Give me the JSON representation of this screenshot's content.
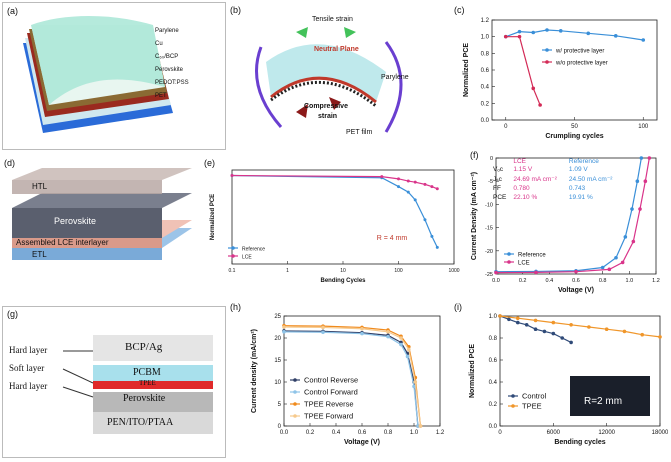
{
  "panels": {
    "a": {
      "label": "(a)",
      "layers": [
        "Parylene",
        "Cu",
        "C₆₀/BCP",
        "Perovskite",
        "PEDOT:PSS",
        "PET"
      ]
    },
    "b": {
      "label": "(b)",
      "tensile": "Tensile strain",
      "neutral": "Neutral Plane",
      "parylene": "Parylene",
      "compressive": "Compressive",
      "compressive2": "strain",
      "pet": "PET film"
    },
    "d": {
      "label": "(d)",
      "layers": [
        "HTL",
        "Perovskite",
        "Assembled LCE interlayer",
        "ETL"
      ]
    },
    "f": {
      "label": "(f)",
      "table": {
        "head": [
          "",
          "LCE",
          "Reference"
        ],
        "rows": [
          [
            "Vₒc",
            "1.15 V",
            "1.09 V"
          ],
          [
            "Jₛc",
            "24.69 mA cm⁻²",
            "24.50 mA cm⁻²"
          ],
          [
            "FF",
            "0.780",
            "0.743"
          ],
          [
            "PCE",
            "22.10 %",
            "19.91 %"
          ]
        ]
      }
    },
    "g": {
      "label": "(g)",
      "side": [
        "Hard layer",
        "Soft layer",
        "Hard layer"
      ],
      "stack": [
        "BCP/Ag",
        "PCBM",
        "TPEE",
        "Perovskite",
        "PEN/ITO/PTAA"
      ]
    },
    "i": {
      "inset": "R=2 mm"
    }
  },
  "chart_data": [
    {
      "id": "c",
      "label": "(c)",
      "type": "line",
      "xlabel": "Crumpling cycles",
      "ylabel": "Normalized PCE",
      "xlim": [
        -10,
        110
      ],
      "ylim": [
        0.0,
        1.2
      ],
      "xticks": [
        "0",
        "50",
        "100"
      ],
      "yticks": [
        "0.0",
        "0.2",
        "0.4",
        "0.6",
        "0.8",
        "1.0",
        "1.2"
      ],
      "legend_position": "center-right",
      "series": [
        {
          "name": "w/ protective layer",
          "color": "#3a8fd8",
          "x": [
            0,
            10,
            20,
            30,
            40,
            60,
            80,
            100
          ],
          "y": [
            1.0,
            1.06,
            1.05,
            1.08,
            1.07,
            1.04,
            1.01,
            0.96
          ]
        },
        {
          "name": "w/o protective layer",
          "color": "#d32a56",
          "x": [
            0,
            10,
            20,
            25
          ],
          "y": [
            1.0,
            1.0,
            0.38,
            0.18
          ]
        }
      ]
    },
    {
      "id": "e",
      "label": "(e)",
      "type": "line",
      "xlabel": "Bending Cycles",
      "ylabel": "Normalized PCE",
      "xscale": "log",
      "xlim": [
        0.1,
        1000
      ],
      "ylim": [
        0.2,
        1.05
      ],
      "xticks": [
        "0.1",
        "1",
        "10",
        "100",
        "1000"
      ],
      "inset": "R = 4 mm",
      "legend_position": "bottom-left",
      "series": [
        {
          "name": "Reference",
          "color": "#3a8fd8",
          "x": [
            0.1,
            50,
            100,
            150,
            200,
            300,
            400,
            500
          ],
          "y": [
            1.0,
            0.98,
            0.9,
            0.85,
            0.78,
            0.6,
            0.45,
            0.35
          ]
        },
        {
          "name": "LCE",
          "color": "#d9348a",
          "x": [
            0.1,
            50,
            100,
            150,
            200,
            300,
            400,
            500
          ],
          "y": [
            1.0,
            0.99,
            0.97,
            0.95,
            0.94,
            0.92,
            0.9,
            0.88
          ]
        }
      ]
    },
    {
      "id": "f",
      "label": "(f)",
      "type": "line",
      "xlabel": "Voltage (V)",
      "ylabel": "Current Density (mA cm⁻²)",
      "xlim": [
        0.0,
        1.2
      ],
      "ylim": [
        -25,
        0
      ],
      "xticks": [
        "0.0",
        "0.2",
        "0.4",
        "0.6",
        "0.8",
        "1.0",
        "1.2"
      ],
      "yticks": [
        "0",
        "-5",
        "-10",
        "-15",
        "-20",
        "-25"
      ],
      "legend_position": "bottom-left",
      "series": [
        {
          "name": "Reference",
          "color": "#3a8fd8",
          "x": [
            0.0,
            0.3,
            0.6,
            0.8,
            0.9,
            0.97,
            1.02,
            1.06,
            1.09
          ],
          "y": [
            -24.5,
            -24.45,
            -24.3,
            -23.6,
            -21.5,
            -17.0,
            -11.0,
            -5.0,
            0.0
          ]
        },
        {
          "name": "LCE",
          "color": "#d9348a",
          "x": [
            0.0,
            0.3,
            0.6,
            0.85,
            0.95,
            1.03,
            1.08,
            1.12,
            1.15
          ],
          "y": [
            -24.7,
            -24.65,
            -24.5,
            -24.0,
            -22.5,
            -18.0,
            -11.0,
            -5.0,
            0.0
          ]
        }
      ]
    },
    {
      "id": "h",
      "label": "(h)",
      "type": "line",
      "xlabel": "Voltage (V)",
      "ylabel": "Current density (mA/cm²)",
      "xlim": [
        0.0,
        1.2
      ],
      "ylim": [
        0,
        25
      ],
      "xticks": [
        "0.0",
        "0.2",
        "0.4",
        "0.6",
        "0.8",
        "1.0",
        "1.2"
      ],
      "yticks": [
        "0",
        "5",
        "10",
        "15",
        "20",
        "25"
      ],
      "legend_position": "bottom-left",
      "series": [
        {
          "name": "Control Reverse",
          "color": "#2f3e66",
          "x": [
            0.0,
            0.3,
            0.6,
            0.8,
            0.9,
            0.95,
            1.0,
            1.03
          ],
          "y": [
            21.6,
            21.5,
            21.2,
            20.6,
            19.0,
            16.5,
            10.0,
            0.0
          ]
        },
        {
          "name": "Control Forward",
          "color": "#8fc4e8",
          "x": [
            0.0,
            0.3,
            0.6,
            0.8,
            0.9,
            0.95,
            1.0,
            1.03
          ],
          "y": [
            21.4,
            21.3,
            21.0,
            20.3,
            18.5,
            15.8,
            9.0,
            0.0
          ]
        },
        {
          "name": "TPEE Reverse",
          "color": "#f08a1c",
          "x": [
            0.0,
            0.3,
            0.6,
            0.8,
            0.9,
            0.96,
            1.01,
            1.05
          ],
          "y": [
            22.8,
            22.7,
            22.4,
            21.8,
            20.4,
            18.0,
            11.0,
            0.0
          ]
        },
        {
          "name": "TPEE Forward",
          "color": "#f6c98c",
          "x": [
            0.0,
            0.3,
            0.6,
            0.8,
            0.9,
            0.96,
            1.01,
            1.05
          ],
          "y": [
            22.5,
            22.4,
            22.1,
            21.4,
            20.0,
            17.4,
            10.0,
            0.0
          ]
        }
      ]
    },
    {
      "id": "i",
      "label": "(i)",
      "type": "line",
      "xlabel": "Bending cycles",
      "ylabel": "Normalized PCE",
      "xlim": [
        0,
        18000
      ],
      "ylim": [
        0.0,
        1.0
      ],
      "xticks": [
        "0",
        "6000",
        "12000",
        "18000"
      ],
      "yticks": [
        "0.0",
        "0.2",
        "0.4",
        "0.6",
        "0.8",
        "1.0"
      ],
      "legend_position": "bottom-left",
      "series": [
        {
          "name": "Control",
          "color": "#2f4a78",
          "x": [
            0,
            1000,
            2000,
            3000,
            4000,
            5000,
            6000,
            7000,
            8000
          ],
          "y": [
            1.0,
            0.97,
            0.94,
            0.92,
            0.88,
            0.86,
            0.84,
            0.8,
            0.76
          ]
        },
        {
          "name": "TPEE",
          "color": "#f0962a",
          "x": [
            0,
            2000,
            4000,
            6000,
            8000,
            10000,
            12000,
            14000,
            16000,
            18000
          ],
          "y": [
            1.0,
            0.98,
            0.96,
            0.94,
            0.92,
            0.9,
            0.88,
            0.86,
            0.83,
            0.81
          ]
        }
      ]
    }
  ]
}
